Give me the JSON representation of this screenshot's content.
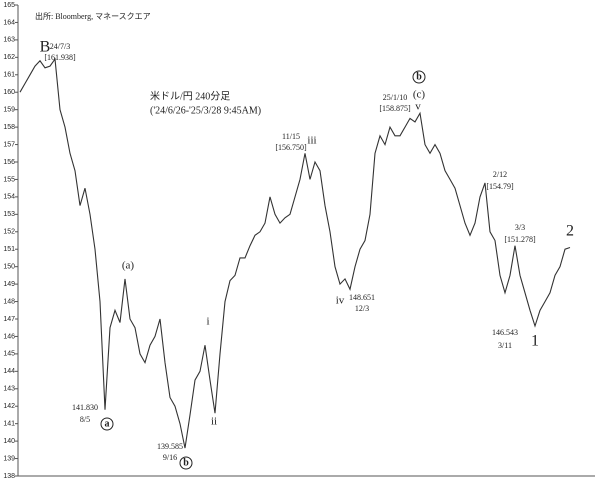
{
  "chart_data": {
    "type": "line",
    "title": "米ドル/円 240分足",
    "subtitle": "('24/6/26-'25/3/28 9:45AM)",
    "source": "出所: Bloomberg, マネースクエア",
    "color": "#333333",
    "ylim": [
      138,
      165
    ],
    "yticks": [
      138,
      139,
      140,
      141,
      142,
      143,
      144,
      145,
      146,
      147,
      148,
      149,
      150,
      151,
      152,
      153,
      154,
      155,
      156,
      157,
      158,
      159,
      160,
      161,
      162,
      163,
      164,
      165
    ],
    "values": [
      160.0,
      160.5,
      161.0,
      161.5,
      161.8,
      161.4,
      161.5,
      161.9,
      159.0,
      158.0,
      156.5,
      155.5,
      153.5,
      154.5,
      153.0,
      151.0,
      148.0,
      141.8,
      146.5,
      147.5,
      146.8,
      149.3,
      147.0,
      146.5,
      145.0,
      144.5,
      145.5,
      146.0,
      147.0,
      144.5,
      142.5,
      142.0,
      141.0,
      139.6,
      141.5,
      143.5,
      144.0,
      145.5,
      143.5,
      141.6,
      145.0,
      148.0,
      149.2,
      149.5,
      150.5,
      150.5,
      151.2,
      151.8,
      152.0,
      152.5,
      154.0,
      153.0,
      152.5,
      152.8,
      153.0,
      154.0,
      155.0,
      156.5,
      155.0,
      156.0,
      155.5,
      153.5,
      152.0,
      150.0,
      149.0,
      149.3,
      148.7,
      150.0,
      151.0,
      151.5,
      153.0,
      156.5,
      157.5,
      157.0,
      158.0,
      157.5,
      157.5,
      158.0,
      158.5,
      158.3,
      158.8,
      157.0,
      156.5,
      157.0,
      156.5,
      155.5,
      155.0,
      154.5,
      153.5,
      152.5,
      151.8,
      152.5,
      154.0,
      154.8,
      152.0,
      151.5,
      149.5,
      148.5,
      149.5,
      151.2,
      149.5,
      148.5,
      147.5,
      146.6,
      147.5,
      148.0,
      148.5,
      149.5,
      150.0,
      151.0,
      151.1
    ],
    "annotations": [
      "B",
      "24/7/3",
      "[161.938]",
      "(a)",
      "a",
      "141.830",
      "8/5",
      "b",
      "139.585",
      "9/16",
      "i",
      "ii",
      "11/15",
      "[156.750]",
      "iii",
      "iv",
      "148.651",
      "12/3",
      "b",
      "(c)",
      "25/1/10",
      "[158.875]",
      "v",
      "2/12",
      "[154.79]",
      "3/3",
      "[151.278]",
      "146.543",
      "3/11",
      "1",
      "2"
    ]
  }
}
